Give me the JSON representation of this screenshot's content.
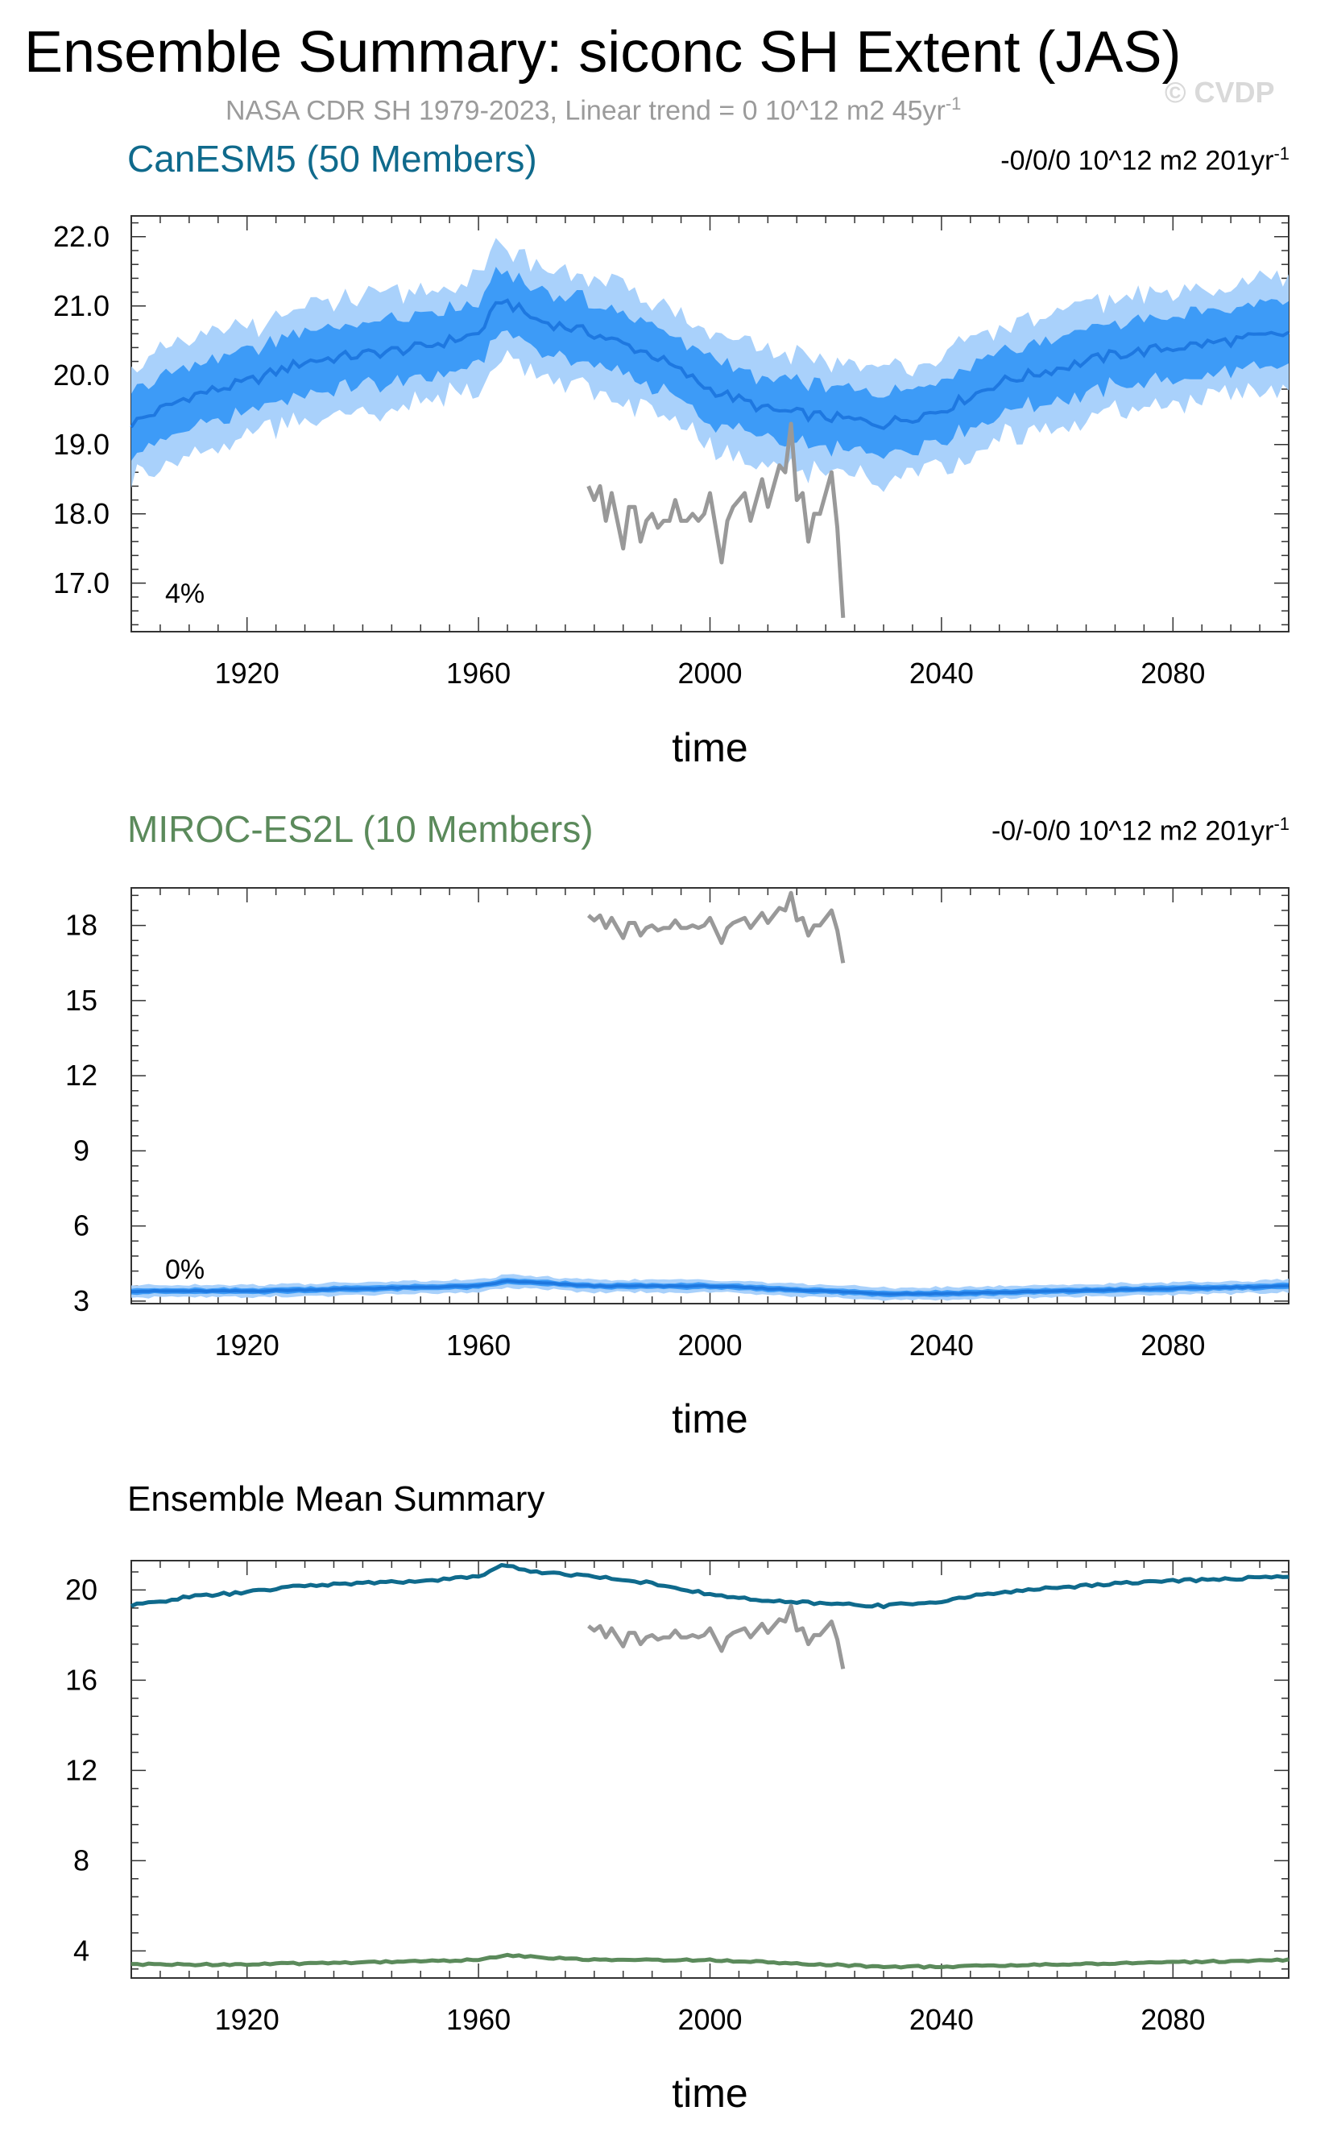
{
  "header": {
    "title": "Ensemble Summary: siconc SH Extent (JAS)",
    "subtitle": "NASA CDR SH 1979-2023, Linear trend = 0 10^12 m2 45yr",
    "subtitle_sup": "-1",
    "watermark": "© CVDP"
  },
  "colors": {
    "band_outer": "#a9d1fb",
    "band_inner": "#3d9bf7",
    "ens_mean_line": "#1e78e0",
    "obs_line": "#999999",
    "canesm_title": "#0f6a8c",
    "miroc_title": "#5b8a5b",
    "summary_canesm": "#0f6a8c",
    "summary_miroc": "#5b8a5b"
  },
  "chart_data": [
    {
      "type": "area",
      "title": "CanESM5 (50 Members)",
      "trend_label": "-0/0/0 10^12 m2 201yr",
      "trend_sup": "-1",
      "percent_label": "4%",
      "xlabel": "time",
      "ylabel": "",
      "xlim": [
        1900,
        2100
      ],
      "ylim": [
        16.3,
        22.3
      ],
      "xticks": [
        1920,
        1960,
        2000,
        2040,
        2080
      ],
      "yticks": [
        17.0,
        18.0,
        19.0,
        20.0,
        21.0,
        22.0
      ],
      "ytick_labels": [
        "17.0",
        "18.0",
        "19.0",
        "20.0",
        "21.0",
        "22.0"
      ],
      "grid": false,
      "ensemble_mean": {
        "x": [
          1900,
          1910,
          1920,
          1930,
          1940,
          1950,
          1960,
          1964,
          1966,
          1970,
          1980,
          1990,
          2000,
          2010,
          2020,
          2030,
          2040,
          2050,
          2060,
          2070,
          2080,
          2090,
          2100
        ],
        "y": [
          19.3,
          19.7,
          19.9,
          20.2,
          20.3,
          20.4,
          20.6,
          21.1,
          21.0,
          20.8,
          20.6,
          20.3,
          19.8,
          19.5,
          19.4,
          19.3,
          19.5,
          19.9,
          20.1,
          20.3,
          20.4,
          20.5,
          20.6
        ]
      },
      "inner_band_halfwidth": 0.45,
      "outer_band_halfwidth": 0.8,
      "observations": {
        "name": "NASA CDR SH",
        "x": [
          1979,
          1980,
          1981,
          1982,
          1983,
          1984,
          1985,
          1986,
          1987,
          1988,
          1989,
          1990,
          1991,
          1992,
          1993,
          1994,
          1995,
          1996,
          1997,
          1998,
          1999,
          2000,
          2001,
          2002,
          2003,
          2004,
          2005,
          2006,
          2007,
          2008,
          2009,
          2010,
          2011,
          2012,
          2013,
          2014,
          2015,
          2016,
          2017,
          2018,
          2019,
          2020,
          2021,
          2022,
          2023
        ],
        "y": [
          18.4,
          18.2,
          18.4,
          17.9,
          18.3,
          17.9,
          17.5,
          18.1,
          18.1,
          17.6,
          17.9,
          18.0,
          17.8,
          17.9,
          17.9,
          18.2,
          17.9,
          17.9,
          18.0,
          17.9,
          18.0,
          18.3,
          17.8,
          17.3,
          17.9,
          18.1,
          18.2,
          18.3,
          17.9,
          18.2,
          18.5,
          18.1,
          18.4,
          18.7,
          18.6,
          19.3,
          18.2,
          18.3,
          17.6,
          18.0,
          18.0,
          18.3,
          18.6,
          17.8,
          16.5
        ]
      }
    },
    {
      "type": "area",
      "title": "MIROC-ES2L (10 Members)",
      "trend_label": "-0/-0/0 10^12 m2 201yr",
      "trend_sup": "-1",
      "percent_label": "0%",
      "xlabel": "time",
      "ylabel": "",
      "xlim": [
        1900,
        2100
      ],
      "ylim": [
        2.9,
        19.5
      ],
      "xticks": [
        1920,
        1960,
        2000,
        2040,
        2080
      ],
      "yticks": [
        3,
        6,
        9,
        12,
        15,
        18
      ],
      "ytick_labels": [
        "3",
        "6",
        "9",
        "12",
        "15",
        "18"
      ],
      "grid": false,
      "ensemble_mean": {
        "x": [
          1900,
          1920,
          1940,
          1960,
          1965,
          1980,
          2000,
          2020,
          2030,
          2040,
          2060,
          2080,
          2100
        ],
        "y": [
          3.4,
          3.4,
          3.5,
          3.6,
          3.8,
          3.6,
          3.6,
          3.4,
          3.3,
          3.3,
          3.4,
          3.5,
          3.6
        ]
      },
      "inner_band_halfwidth": 0.12,
      "outer_band_halfwidth": 0.25,
      "observations": {
        "name": "NASA CDR SH",
        "x": [
          1979,
          1980,
          1981,
          1982,
          1983,
          1984,
          1985,
          1986,
          1987,
          1988,
          1989,
          1990,
          1991,
          1992,
          1993,
          1994,
          1995,
          1996,
          1997,
          1998,
          1999,
          2000,
          2001,
          2002,
          2003,
          2004,
          2005,
          2006,
          2007,
          2008,
          2009,
          2010,
          2011,
          2012,
          2013,
          2014,
          2015,
          2016,
          2017,
          2018,
          2019,
          2020,
          2021,
          2022,
          2023
        ],
        "y": [
          18.4,
          18.2,
          18.4,
          17.9,
          18.3,
          17.9,
          17.5,
          18.1,
          18.1,
          17.6,
          17.9,
          18.0,
          17.8,
          17.9,
          17.9,
          18.2,
          17.9,
          17.9,
          18.0,
          17.9,
          18.0,
          18.3,
          17.8,
          17.3,
          17.9,
          18.1,
          18.2,
          18.3,
          17.9,
          18.2,
          18.5,
          18.1,
          18.4,
          18.7,
          18.6,
          19.3,
          18.2,
          18.3,
          17.6,
          18.0,
          18.0,
          18.3,
          18.6,
          17.8,
          16.5
        ]
      }
    },
    {
      "type": "line",
      "title": "Ensemble Mean Summary",
      "xlabel": "time",
      "ylabel": "",
      "xlim": [
        1900,
        2100
      ],
      "ylim": [
        2.8,
        21.3
      ],
      "xticks": [
        1920,
        1960,
        2000,
        2040,
        2080
      ],
      "yticks": [
        4,
        8,
        12,
        16,
        20
      ],
      "ytick_labels": [
        "4",
        "8",
        "12",
        "16",
        "20"
      ],
      "grid": false,
      "series": [
        {
          "name": "CanESM5",
          "x": [
            1900,
            1910,
            1920,
            1930,
            1940,
            1950,
            1960,
            1964,
            1966,
            1970,
            1980,
            1990,
            2000,
            2010,
            2020,
            2030,
            2040,
            2050,
            2060,
            2070,
            2080,
            2090,
            2100
          ],
          "y": [
            19.3,
            19.7,
            19.9,
            20.2,
            20.3,
            20.4,
            20.6,
            21.1,
            21.0,
            20.8,
            20.6,
            20.3,
            19.8,
            19.5,
            19.4,
            19.3,
            19.5,
            19.9,
            20.1,
            20.3,
            20.4,
            20.5,
            20.6
          ]
        },
        {
          "name": "MIROC-ES2L",
          "x": [
            1900,
            1920,
            1940,
            1960,
            1965,
            1980,
            2000,
            2020,
            2030,
            2040,
            2060,
            2080,
            2100
          ],
          "y": [
            3.4,
            3.4,
            3.5,
            3.6,
            3.8,
            3.6,
            3.6,
            3.4,
            3.3,
            3.3,
            3.4,
            3.5,
            3.6
          ]
        },
        {
          "name": "NASA CDR SH",
          "x": [
            1979,
            1980,
            1981,
            1982,
            1983,
            1984,
            1985,
            1986,
            1987,
            1988,
            1989,
            1990,
            1991,
            1992,
            1993,
            1994,
            1995,
            1996,
            1997,
            1998,
            1999,
            2000,
            2001,
            2002,
            2003,
            2004,
            2005,
            2006,
            2007,
            2008,
            2009,
            2010,
            2011,
            2012,
            2013,
            2014,
            2015,
            2016,
            2017,
            2018,
            2019,
            2020,
            2021,
            2022,
            2023
          ],
          "y": [
            18.4,
            18.2,
            18.4,
            17.9,
            18.3,
            17.9,
            17.5,
            18.1,
            18.1,
            17.6,
            17.9,
            18.0,
            17.8,
            17.9,
            17.9,
            18.2,
            17.9,
            17.9,
            18.0,
            17.9,
            18.0,
            18.3,
            17.8,
            17.3,
            17.9,
            18.1,
            18.2,
            18.3,
            17.9,
            18.2,
            18.5,
            18.1,
            18.4,
            18.7,
            18.6,
            19.3,
            18.2,
            18.3,
            17.6,
            18.0,
            18.0,
            18.3,
            18.6,
            17.8,
            16.5
          ]
        }
      ]
    }
  ]
}
